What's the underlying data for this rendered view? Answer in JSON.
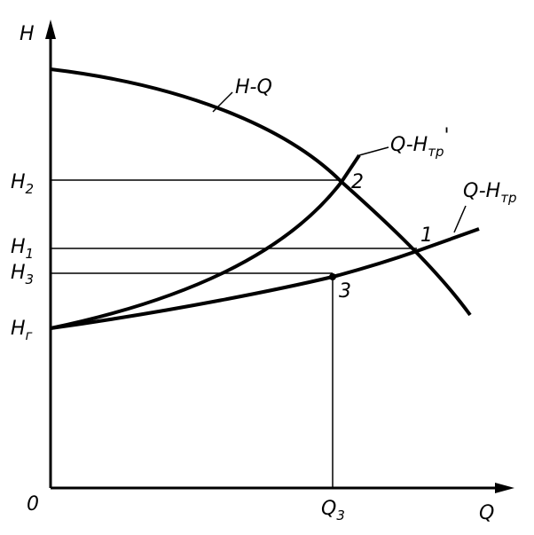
{
  "axes": {
    "y_label": "H",
    "x_label": "Q",
    "origin": "0"
  },
  "levels": [
    {
      "main": "H",
      "sub": "2"
    },
    {
      "main": "H",
      "sub": "1"
    },
    {
      "main": "H",
      "sub": "3"
    },
    {
      "main": "H",
      "sub": "г"
    }
  ],
  "flow": {
    "main": "Q",
    "sub": "3"
  },
  "curves": [
    {
      "label": "H-Q"
    },
    {
      "main": "Q-H",
      "sub": "тр",
      "mark": "'"
    },
    {
      "main": "Q-H",
      "sub": "тр"
    }
  ],
  "points": [
    "1",
    "2",
    "3"
  ]
}
